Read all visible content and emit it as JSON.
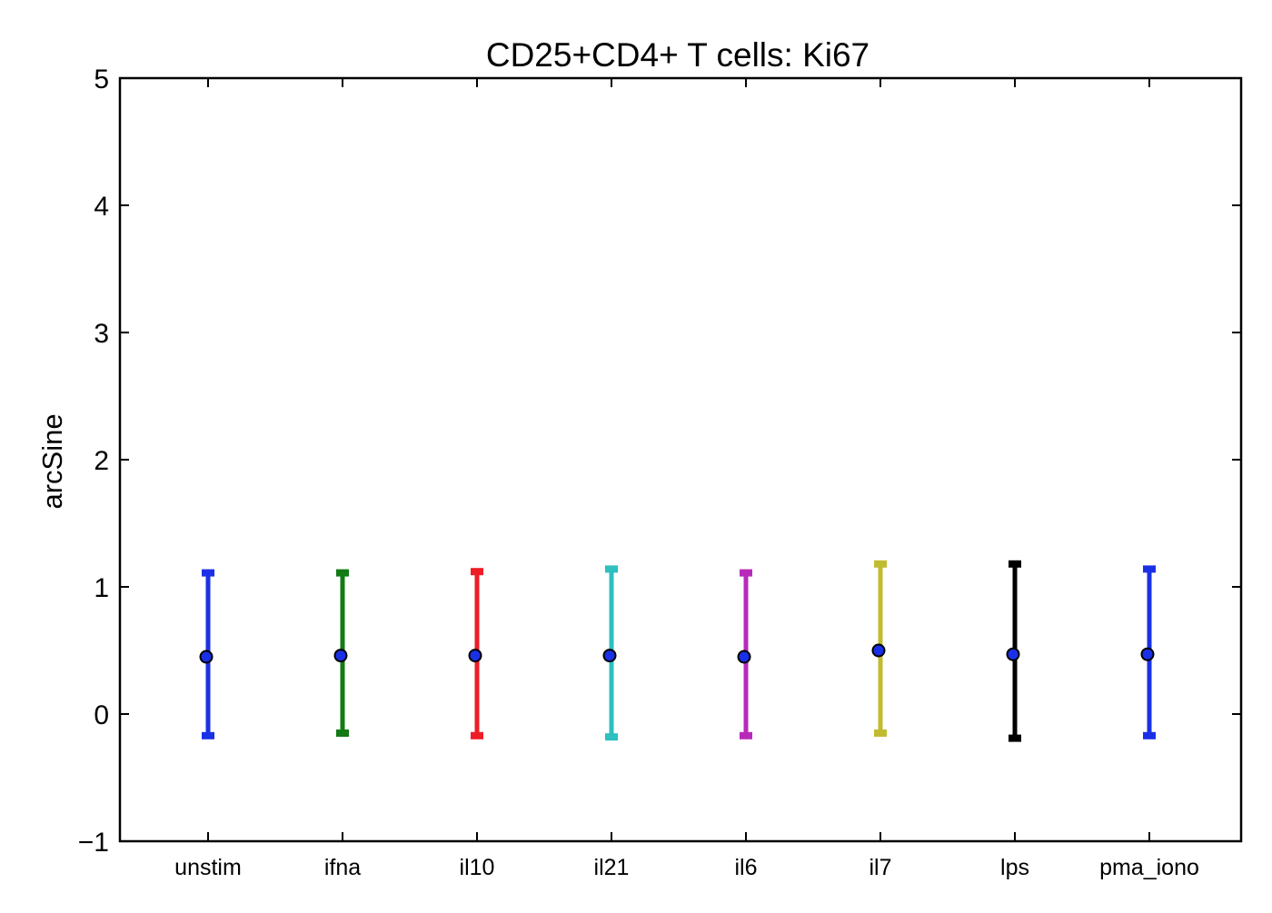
{
  "chart_data": {
    "type": "scatter",
    "title": "CD25+CD4+ T cells: Ki67",
    "xlabel": "",
    "ylabel": "arcSine",
    "ylim": [
      -1,
      5
    ],
    "yticks": [
      -1,
      0,
      1,
      2,
      3,
      4,
      5
    ],
    "ytick_labels": [
      "−1",
      "0",
      "1",
      "2",
      "3",
      "4",
      "5"
    ],
    "grid": false,
    "categories": [
      "unstim",
      "ifna",
      "il10",
      "il21",
      "il6",
      "il7",
      "lps",
      "pma_iono"
    ],
    "points": [
      {
        "category": "unstim",
        "mean": 0.45,
        "lower": -0.17,
        "upper": 1.11,
        "color": "#1a30e6"
      },
      {
        "category": "ifna",
        "mean": 0.46,
        "lower": -0.15,
        "upper": 1.11,
        "color": "#137a16"
      },
      {
        "category": "il10",
        "mean": 0.46,
        "lower": -0.17,
        "upper": 1.12,
        "color": "#ee1d26"
      },
      {
        "category": "il21",
        "mean": 0.46,
        "lower": -0.18,
        "upper": 1.14,
        "color": "#2ebfbf"
      },
      {
        "category": "il6",
        "mean": 0.45,
        "lower": -0.17,
        "upper": 1.11,
        "color": "#b72ab9"
      },
      {
        "category": "il7",
        "mean": 0.5,
        "lower": -0.15,
        "upper": 1.18,
        "color": "#c1bb32"
      },
      {
        "category": "lps",
        "mean": 0.47,
        "lower": -0.19,
        "upper": 1.18,
        "color": "#000000"
      },
      {
        "category": "pma_iono",
        "mean": 0.47,
        "lower": -0.17,
        "upper": 1.14,
        "color": "#1a30e6"
      }
    ],
    "marker_fill": "#1a30e6"
  }
}
